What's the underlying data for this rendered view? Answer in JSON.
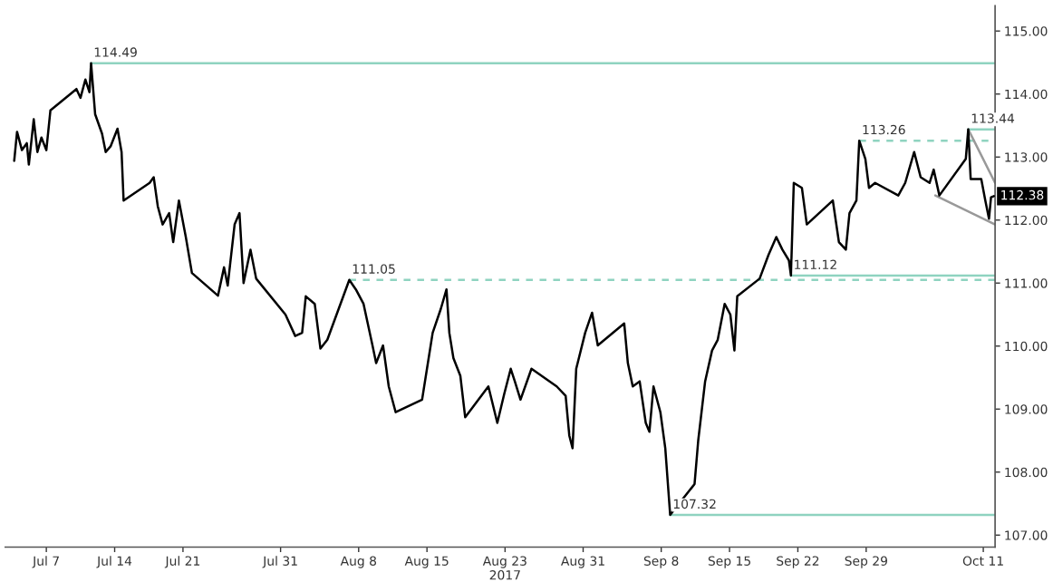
{
  "chart_data": {
    "type": "line",
    "xlim": [
      "2017-07-02T19:00",
      "2017-10-12T05:00"
    ],
    "ylim": [
      106.81,
      115.4
    ],
    "xticks": [
      {
        "value": "2017-07-07",
        "label": "Jul 7"
      },
      {
        "value": "2017-07-14",
        "label": "Jul 14"
      },
      {
        "value": "2017-07-21",
        "label": "Jul 21"
      },
      {
        "value": "2017-07-31",
        "label": "Jul 31"
      },
      {
        "value": "2017-08-08",
        "label": "Aug 8"
      },
      {
        "value": "2017-08-15",
        "label": "Aug 15"
      },
      {
        "value": "2017-08-23",
        "label": "Aug 23\n2017"
      },
      {
        "value": "2017-08-31",
        "label": "Aug 31"
      },
      {
        "value": "2017-09-08",
        "label": "Sep 8"
      },
      {
        "value": "2017-09-15",
        "label": "Sep 15"
      },
      {
        "value": "2017-09-22",
        "label": "Sep 22"
      },
      {
        "value": "2017-09-29",
        "label": "Sep 29"
      },
      {
        "value": "2017-10-11",
        "label": "Oct 11"
      }
    ],
    "yticks": [
      {
        "value": 107,
        "label": "107.00"
      },
      {
        "value": 108,
        "label": "108.00"
      },
      {
        "value": 109,
        "label": "109.00"
      },
      {
        "value": 110,
        "label": "110.00"
      },
      {
        "value": 111,
        "label": "111.00"
      },
      {
        "value": 112,
        "label": "112.00"
      },
      {
        "value": 113,
        "label": "113.00"
      },
      {
        "value": 114,
        "label": "114.00"
      },
      {
        "value": 115,
        "label": "115.00"
      }
    ],
    "grid": false,
    "legend": false,
    "series": [
      {
        "color": "#000000",
        "line_style": "solid",
        "x": [
          "2017-07-03T17:00",
          "2017-07-04T00:00",
          "2017-07-04T12:00",
          "2017-07-05T00:00",
          "2017-07-05T05:00",
          "2017-07-05T17:00",
          "2017-07-06T02:00",
          "2017-07-06T12:00",
          "2017-07-07T00:00",
          "2017-07-07T10:00",
          "2017-07-10T02:00",
          "2017-07-10T12:00",
          "2017-07-11T00:00",
          "2017-07-11T10:00",
          "2017-07-11T14:00",
          "2017-07-12T00:00",
          "2017-07-12T17:00",
          "2017-07-13T02:00",
          "2017-07-13T14:00",
          "2017-07-14T07:00",
          "2017-07-14T17:00",
          "2017-07-14T22:00",
          "2017-07-17T14:00",
          "2017-07-18T00:00",
          "2017-07-18T10:00",
          "2017-07-18T22:00",
          "2017-07-19T14:00",
          "2017-07-20T00:00",
          "2017-07-20T14:00",
          "2017-07-21T07:00",
          "2017-07-21T22:00",
          "2017-07-24T14:00",
          "2017-07-25T05:00",
          "2017-07-25T14:00",
          "2017-07-26T07:00",
          "2017-07-26T19:00",
          "2017-07-27T05:00",
          "2017-07-27T22:00",
          "2017-07-28T12:00",
          "2017-07-31T12:00",
          "2017-08-01T12:00",
          "2017-08-02T05:00",
          "2017-08-02T14:00",
          "2017-08-03T12:00",
          "2017-08-04T02:00",
          "2017-08-04T19:00",
          "2017-08-07T01:00",
          "2017-08-07T17:00",
          "2017-08-08T12:00",
          "2017-08-09T10:00",
          "2017-08-09T19:00",
          "2017-08-10T12:00",
          "2017-08-11T02:00",
          "2017-08-11T19:00",
          "2017-08-14T12:00",
          "2017-08-15T00:00",
          "2017-08-15T14:00",
          "2017-08-16T10:00",
          "2017-08-17T00:00",
          "2017-08-17T07:00",
          "2017-08-17T17:00",
          "2017-08-18T10:00",
          "2017-08-18T22:00",
          "2017-08-21T07:00",
          "2017-08-22T05:00",
          "2017-08-22T22:00",
          "2017-08-23T14:00",
          "2017-08-24T00:00",
          "2017-08-24T14:00",
          "2017-08-25T17:00",
          "2017-08-28T07:00",
          "2017-08-29T05:00",
          "2017-08-29T14:00",
          "2017-08-29T22:00",
          "2017-08-30T07:00",
          "2017-08-31T05:00",
          "2017-08-31T22:00",
          "2017-09-01T12:00",
          "2017-09-04T05:00",
          "2017-09-04T14:00",
          "2017-09-05T02:00",
          "2017-09-05T19:00",
          "2017-09-06T10:00",
          "2017-09-06T19:00",
          "2017-09-07T05:00",
          "2017-09-07T22:00",
          "2017-09-08T10:00",
          "2017-09-08T22:00",
          "2017-09-11T10:00",
          "2017-09-11T19:00",
          "2017-09-12T12:00",
          "2017-09-13T05:00",
          "2017-09-13T19:00",
          "2017-09-14T12:00",
          "2017-09-15T02:00",
          "2017-09-15T12:00",
          "2017-09-15T19:00",
          "2017-09-18T02:00",
          "2017-09-19T00:00",
          "2017-09-19T19:00",
          "2017-09-20T10:00",
          "2017-09-21T02:00",
          "2017-09-21T07:00",
          "2017-09-21T14:00",
          "2017-09-22T10:00",
          "2017-09-22T22:00",
          "2017-09-25T14:00",
          "2017-09-26T05:00",
          "2017-09-26T22:00",
          "2017-09-27T07:00",
          "2017-09-28T00:00",
          "2017-09-28T07:00",
          "2017-09-28T22:00",
          "2017-09-29T07:00",
          "2017-09-29T22:00",
          "2017-10-02T07:00",
          "2017-10-03T00:00",
          "2017-10-03T22:00",
          "2017-10-04T14:00",
          "2017-10-05T12:00",
          "2017-10-05T22:00",
          "2017-10-06T12:00",
          "2017-10-09T05:00",
          "2017-10-09T11:00",
          "2017-10-09T17:00",
          "2017-10-10T19:00",
          "2017-10-11T05:00",
          "2017-10-11T14:00",
          "2017-10-11T19:00",
          "2017-10-12T02:00"
        ],
        "values": [
          112.94,
          113.4,
          113.11,
          113.22,
          112.88,
          113.6,
          113.08,
          113.31,
          113.11,
          113.74,
          114.08,
          113.94,
          114.23,
          114.03,
          114.49,
          113.68,
          113.37,
          113.08,
          113.17,
          113.45,
          113.08,
          112.31,
          112.59,
          112.68,
          112.22,
          111.93,
          112.11,
          111.65,
          112.31,
          111.73,
          111.16,
          110.8,
          111.25,
          110.96,
          111.93,
          112.11,
          111.0,
          111.53,
          111.07,
          110.5,
          110.16,
          110.21,
          110.79,
          110.67,
          109.96,
          110.1,
          111.05,
          110.9,
          110.67,
          110.01,
          109.73,
          110.01,
          109.36,
          108.95,
          109.15,
          109.64,
          110.21,
          110.59,
          110.9,
          110.21,
          109.81,
          109.53,
          108.87,
          109.36,
          108.78,
          109.24,
          109.64,
          109.44,
          109.15,
          109.64,
          109.36,
          109.21,
          108.58,
          108.38,
          109.64,
          110.21,
          110.53,
          110.01,
          110.36,
          109.73,
          109.36,
          109.44,
          108.78,
          108.64,
          109.36,
          108.95,
          108.38,
          107.32,
          107.81,
          108.5,
          109.44,
          109.93,
          110.1,
          110.67,
          110.5,
          109.93,
          110.79,
          111.07,
          111.45,
          111.73,
          111.53,
          111.36,
          111.12,
          112.59,
          112.51,
          111.93,
          112.31,
          111.65,
          111.53,
          112.11,
          112.31,
          113.26,
          112.97,
          112.51,
          112.59,
          112.39,
          112.59,
          113.08,
          112.68,
          112.59,
          112.8,
          112.39,
          112.97,
          113.44,
          112.65,
          112.65,
          112.31,
          112.02,
          112.36,
          112.38
        ]
      },
      {
        "color": "#8fd3c0",
        "line_style": "solid",
        "x": [
          "2017-07-11T14:00",
          "2017-10-12T05:00"
        ],
        "values": [
          114.49,
          114.49
        ]
      },
      {
        "color": "#8fd3c0",
        "line_style": "dashed",
        "x": [
          "2017-08-07T01:00",
          "2017-10-12T05:00"
        ],
        "values": [
          111.05,
          111.05
        ]
      },
      {
        "color": "#8fd3c0",
        "line_style": "solid",
        "x": [
          "2017-09-21T07:00",
          "2017-10-12T05:00"
        ],
        "values": [
          111.12,
          111.12
        ]
      },
      {
        "color": "#8fd3c0",
        "line_style": "dashed",
        "x": [
          "2017-09-28T07:00",
          "2017-10-12T05:00"
        ],
        "values": [
          113.26,
          113.26
        ]
      },
      {
        "color": "#8fd3c0",
        "line_style": "solid",
        "x": [
          "2017-10-09T11:00",
          "2017-10-12T05:00"
        ],
        "values": [
          113.44,
          113.44
        ]
      },
      {
        "color": "#8fd3c0",
        "line_style": "solid",
        "x": [
          "2017-09-08T22:00",
          "2017-10-12T05:00"
        ],
        "values": [
          107.32,
          107.32
        ]
      },
      {
        "color": "#999999",
        "line_style": "solid",
        "x": [
          "2017-10-09T11:00",
          "2017-10-12T05:00"
        ],
        "values": [
          113.44,
          112.59
        ]
      },
      {
        "color": "#999999",
        "line_style": "solid",
        "x": [
          "2017-10-06T02:00",
          "2017-10-12T05:00"
        ],
        "values": [
          112.39,
          111.93
        ]
      }
    ],
    "annotations": [
      {
        "text": "114.49",
        "x": "2017-07-11T14:00",
        "y": 114.49
      },
      {
        "text": "111.05",
        "x": "2017-08-07T01:00",
        "y": 111.05
      },
      {
        "text": "111.12",
        "x": "2017-09-21T07:00",
        "y": 111.12
      },
      {
        "text": "113.26",
        "x": "2017-09-28T07:00",
        "y": 113.26
      },
      {
        "text": "113.44",
        "x": "2017-10-09T11:00",
        "y": 113.44
      },
      {
        "text": "107.32",
        "x": "2017-09-08T22:00",
        "y": 107.32
      },
      {
        "text": "112.38",
        "x": "2017-10-12T05:00",
        "y": 112.38
      }
    ]
  }
}
